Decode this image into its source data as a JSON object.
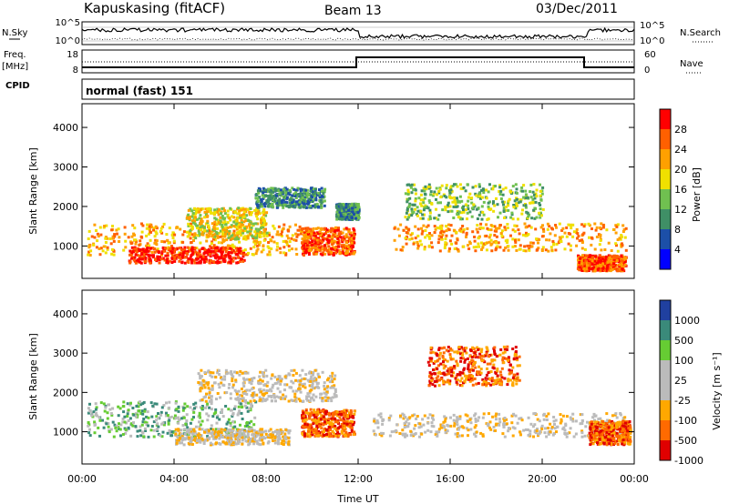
{
  "header": {
    "station": "Kapuskasing (fitACF)",
    "beam": "Beam 13",
    "date": "03/Dec/2011"
  },
  "panels": {
    "nsky": {
      "left_label": "N.Sky",
      "right_label": "N.Search",
      "left_ticks": [
        "10^5",
        "10^0"
      ],
      "right_ticks": [
        "10^5",
        "10^0"
      ]
    },
    "freq": {
      "left_label_1": "Freq.",
      "left_label_2": "[MHz]",
      "right_label": "Nave",
      "left_ticks": [
        "18",
        "8"
      ],
      "right_ticks": [
        "60",
        "0"
      ]
    },
    "cpid": {
      "label": "CPID",
      "value": "normal (fast) 151"
    }
  },
  "colors": {
    "power_scale": [
      "#0000ff",
      "#1c4fa8",
      "#3f8f66",
      "#70c050",
      "#f0e000",
      "#ffa000",
      "#ff6000",
      "#ff0000"
    ],
    "velocity_scale": [
      "#e00000",
      "#ff6a00",
      "#ffa800",
      "#bbbbbb",
      "#bbbbbb",
      "#66cc33",
      "#3a8a7a",
      "#2040a0"
    ]
  },
  "chart_data": [
    {
      "type": "heatmap",
      "title": "",
      "ylabel": "Slant Range [km]",
      "xlabel": "Time UT",
      "yticks": [
        "1000",
        "2000",
        "3000",
        "4000"
      ],
      "xticks": [
        "00:00",
        "04:00",
        "08:00",
        "12:00",
        "16:00",
        "20:00",
        "00:00"
      ],
      "ylim": [
        180,
        4600
      ],
      "xlim": [
        0,
        24
      ],
      "colorbar_label": "Power [dB]",
      "colorbar_ticks": [
        "4",
        "8",
        "12",
        "16",
        "20",
        "24",
        "28"
      ],
      "regions": [
        {
          "t0": 0.2,
          "t1": 9.5,
          "r0": 800,
          "r1": 1600,
          "level": 5
        },
        {
          "t0": 2.0,
          "t1": 7.0,
          "r0": 600,
          "r1": 1000,
          "level": 7
        },
        {
          "t0": 4.5,
          "t1": 8.0,
          "r0": 1200,
          "r1": 2000,
          "level": 4
        },
        {
          "t0": 7.5,
          "t1": 10.5,
          "r0": 2000,
          "r1": 2500,
          "level": 2
        },
        {
          "t0": 9.5,
          "t1": 11.8,
          "r0": 800,
          "r1": 1500,
          "level": 6
        },
        {
          "t0": 11.0,
          "t1": 12.0,
          "r0": 1700,
          "r1": 2100,
          "level": 2
        },
        {
          "t0": 13.5,
          "t1": 23.6,
          "r0": 900,
          "r1": 1600,
          "level": 5
        },
        {
          "t0": 14.0,
          "t1": 20.0,
          "r0": 1700,
          "r1": 2600,
          "level": 3
        },
        {
          "t0": 21.5,
          "t1": 23.6,
          "r0": 400,
          "r1": 800,
          "level": 6
        }
      ]
    },
    {
      "type": "heatmap",
      "title": "",
      "ylabel": "Slant Range [km]",
      "xlabel": "Time UT",
      "yticks": [
        "1000",
        "2000",
        "3000",
        "4000"
      ],
      "xticks": [
        "00:00",
        "04:00",
        "08:00",
        "12:00",
        "16:00",
        "20:00",
        "00:00"
      ],
      "ylim": [
        180,
        4600
      ],
      "xlim": [
        0,
        24
      ],
      "colorbar_label": "Velocity [m s⁻¹]",
      "colorbar_ticks": [
        "1000",
        "500",
        "100",
        "25",
        "-25",
        "-100",
        "-500",
        "-1000"
      ],
      "regions": [
        {
          "t0": 0.2,
          "t1": 7.5,
          "r0": 900,
          "r1": 1800,
          "level": 5
        },
        {
          "t0": 4.0,
          "t1": 9.0,
          "r0": 700,
          "r1": 1100,
          "level": 3
        },
        {
          "t0": 5.0,
          "t1": 11.0,
          "r0": 1800,
          "r1": 2600,
          "level": 3
        },
        {
          "t0": 9.5,
          "t1": 11.8,
          "r0": 900,
          "r1": 1600,
          "level": 1
        },
        {
          "t0": 12.5,
          "t1": 23.6,
          "r0": 900,
          "r1": 1500,
          "level": 3
        },
        {
          "t0": 15.0,
          "t1": 19.0,
          "r0": 2200,
          "r1": 3200,
          "level": 1
        },
        {
          "t0": 22.0,
          "t1": 23.8,
          "r0": 700,
          "r1": 1300,
          "level": 1
        }
      ]
    }
  ]
}
